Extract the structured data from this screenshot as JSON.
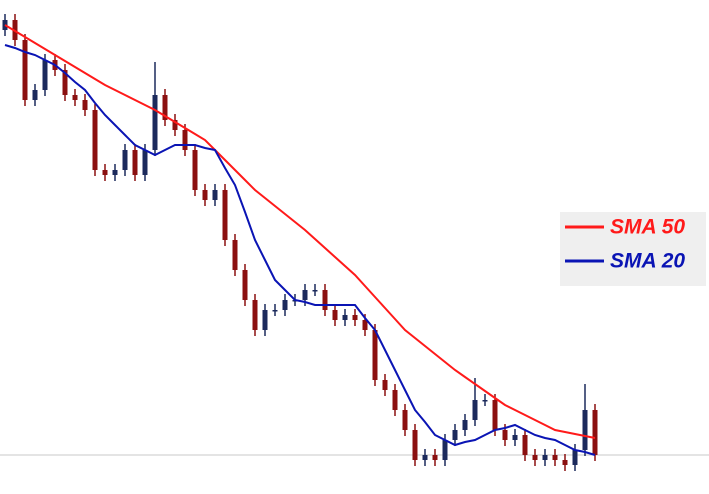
{
  "chart_data": {
    "type": "candlestick",
    "ylim": [
      0,
      494
    ],
    "up_color": "#1c2a5c",
    "down_color": "#8b1010",
    "open": [
      464,
      474,
      454,
      394,
      404,
      434,
      424,
      399,
      394,
      384,
      324,
      319,
      324,
      344,
      319,
      344,
      399,
      374,
      364,
      344,
      304,
      294,
      304,
      254,
      224,
      194,
      164,
      184,
      184,
      194,
      194,
      204,
      204,
      184,
      174,
      179,
      174,
      164,
      114,
      104,
      84,
      64,
      34,
      39,
      34,
      54,
      64,
      74,
      94,
      94,
      64,
      54,
      59,
      39,
      34,
      39,
      34,
      29,
      44,
      84
    ],
    "high": [
      480,
      480,
      460,
      410,
      440,
      440,
      430,
      405,
      400,
      390,
      330,
      330,
      350,
      350,
      350,
      432,
      405,
      380,
      370,
      350,
      310,
      310,
      310,
      260,
      230,
      200,
      190,
      190,
      200,
      200,
      210,
      210,
      210,
      190,
      185,
      185,
      180,
      170,
      120,
      110,
      90,
      70,
      45,
      45,
      60,
      70,
      80,
      116,
      100,
      100,
      70,
      65,
      65,
      45,
      45,
      45,
      40,
      50,
      110,
      90
    ],
    "low": [
      458,
      448,
      388,
      388,
      398,
      418,
      393,
      388,
      378,
      318,
      313,
      313,
      318,
      313,
      313,
      338,
      368,
      358,
      338,
      298,
      288,
      288,
      248,
      218,
      188,
      158,
      158,
      178,
      178,
      188,
      188,
      198,
      178,
      168,
      168,
      168,
      158,
      108,
      98,
      78,
      58,
      28,
      28,
      28,
      28,
      48,
      58,
      68,
      88,
      58,
      48,
      48,
      33,
      28,
      28,
      28,
      23,
      23,
      38,
      33
    ],
    "close": [
      474,
      454,
      394,
      404,
      434,
      424,
      399,
      394,
      384,
      324,
      319,
      324,
      344,
      319,
      344,
      399,
      374,
      364,
      344,
      304,
      294,
      304,
      254,
      224,
      194,
      164,
      184,
      184,
      194,
      194,
      204,
      204,
      184,
      174,
      179,
      174,
      164,
      114,
      104,
      84,
      64,
      34,
      39,
      34,
      54,
      64,
      74,
      94,
      94,
      64,
      54,
      59,
      39,
      34,
      39,
      34,
      29,
      44,
      84,
      39
    ],
    "price_line": 39,
    "series": [
      {
        "name": "SMA 50",
        "color": "#ff1a1a",
        "values": [
          469,
          463,
          457,
          451,
          445,
          439,
          433,
          427,
          421,
          415,
          409,
          404,
          399,
          394,
          389,
          384,
          378,
          372,
          366,
          360,
          354,
          344,
          334,
          324,
          314,
          304,
          296,
          288,
          280,
          272,
          264,
          255,
          246,
          237,
          228,
          219,
          208,
          197,
          186,
          175,
          164,
          156,
          148,
          140,
          132,
          124,
          117,
          110,
          103,
          96,
          89,
          84,
          79,
          74,
          69,
          64,
          62,
          60,
          58,
          56
        ]
      },
      {
        "name": "SMA 20",
        "color": "#0a14b4",
        "values": [
          449,
          446,
          442,
          439,
          434,
          429,
          421,
          412,
          404,
          391,
          379,
          369,
          359,
          349,
          344,
          339,
          344,
          349,
          349,
          349,
          346,
          344,
          326,
          309,
          282,
          254,
          234,
          214,
          204,
          194,
          192,
          189,
          189,
          189,
          189,
          189,
          176,
          164,
          144,
          124,
          104,
          84,
          72,
          59,
          54,
          49,
          52,
          54,
          59,
          64,
          66,
          69,
          64,
          59,
          56,
          54,
          49,
          44,
          42,
          39
        ]
      }
    ]
  }
}
